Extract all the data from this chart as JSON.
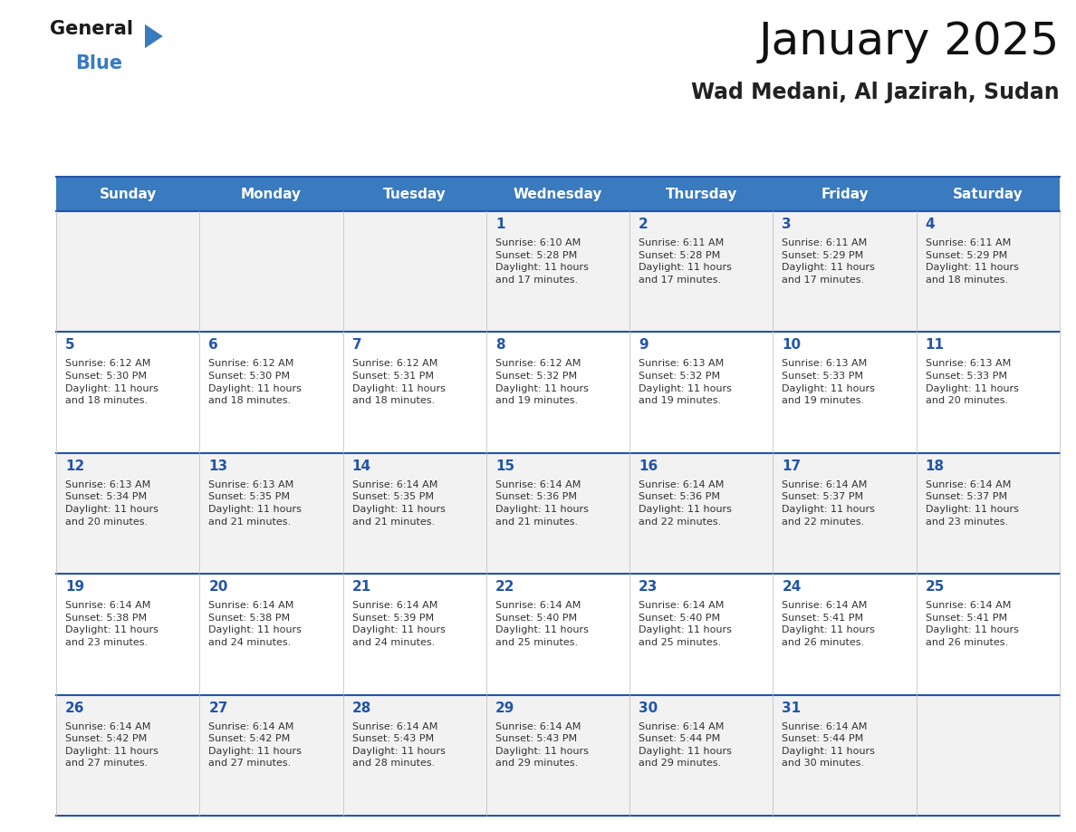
{
  "title": "January 2025",
  "subtitle": "Wad Medani, Al Jazirah, Sudan",
  "header_color": "#3a7abf",
  "header_text_color": "#ffffff",
  "cell_bg_odd": "#f2f2f2",
  "cell_bg_even": "#ffffff",
  "day_number_color": "#2255aa",
  "text_color": "#333333",
  "line_color": "#2255aa",
  "days_of_week": [
    "Sunday",
    "Monday",
    "Tuesday",
    "Wednesday",
    "Thursday",
    "Friday",
    "Saturday"
  ],
  "weeks": [
    [
      {
        "day": null,
        "info": null
      },
      {
        "day": null,
        "info": null
      },
      {
        "day": null,
        "info": null
      },
      {
        "day": 1,
        "info": "Sunrise: 6:10 AM\nSunset: 5:28 PM\nDaylight: 11 hours\nand 17 minutes."
      },
      {
        "day": 2,
        "info": "Sunrise: 6:11 AM\nSunset: 5:28 PM\nDaylight: 11 hours\nand 17 minutes."
      },
      {
        "day": 3,
        "info": "Sunrise: 6:11 AM\nSunset: 5:29 PM\nDaylight: 11 hours\nand 17 minutes."
      },
      {
        "day": 4,
        "info": "Sunrise: 6:11 AM\nSunset: 5:29 PM\nDaylight: 11 hours\nand 18 minutes."
      }
    ],
    [
      {
        "day": 5,
        "info": "Sunrise: 6:12 AM\nSunset: 5:30 PM\nDaylight: 11 hours\nand 18 minutes."
      },
      {
        "day": 6,
        "info": "Sunrise: 6:12 AM\nSunset: 5:30 PM\nDaylight: 11 hours\nand 18 minutes."
      },
      {
        "day": 7,
        "info": "Sunrise: 6:12 AM\nSunset: 5:31 PM\nDaylight: 11 hours\nand 18 minutes."
      },
      {
        "day": 8,
        "info": "Sunrise: 6:12 AM\nSunset: 5:32 PM\nDaylight: 11 hours\nand 19 minutes."
      },
      {
        "day": 9,
        "info": "Sunrise: 6:13 AM\nSunset: 5:32 PM\nDaylight: 11 hours\nand 19 minutes."
      },
      {
        "day": 10,
        "info": "Sunrise: 6:13 AM\nSunset: 5:33 PM\nDaylight: 11 hours\nand 19 minutes."
      },
      {
        "day": 11,
        "info": "Sunrise: 6:13 AM\nSunset: 5:33 PM\nDaylight: 11 hours\nand 20 minutes."
      }
    ],
    [
      {
        "day": 12,
        "info": "Sunrise: 6:13 AM\nSunset: 5:34 PM\nDaylight: 11 hours\nand 20 minutes."
      },
      {
        "day": 13,
        "info": "Sunrise: 6:13 AM\nSunset: 5:35 PM\nDaylight: 11 hours\nand 21 minutes."
      },
      {
        "day": 14,
        "info": "Sunrise: 6:14 AM\nSunset: 5:35 PM\nDaylight: 11 hours\nand 21 minutes."
      },
      {
        "day": 15,
        "info": "Sunrise: 6:14 AM\nSunset: 5:36 PM\nDaylight: 11 hours\nand 21 minutes."
      },
      {
        "day": 16,
        "info": "Sunrise: 6:14 AM\nSunset: 5:36 PM\nDaylight: 11 hours\nand 22 minutes."
      },
      {
        "day": 17,
        "info": "Sunrise: 6:14 AM\nSunset: 5:37 PM\nDaylight: 11 hours\nand 22 minutes."
      },
      {
        "day": 18,
        "info": "Sunrise: 6:14 AM\nSunset: 5:37 PM\nDaylight: 11 hours\nand 23 minutes."
      }
    ],
    [
      {
        "day": 19,
        "info": "Sunrise: 6:14 AM\nSunset: 5:38 PM\nDaylight: 11 hours\nand 23 minutes."
      },
      {
        "day": 20,
        "info": "Sunrise: 6:14 AM\nSunset: 5:38 PM\nDaylight: 11 hours\nand 24 minutes."
      },
      {
        "day": 21,
        "info": "Sunrise: 6:14 AM\nSunset: 5:39 PM\nDaylight: 11 hours\nand 24 minutes."
      },
      {
        "day": 22,
        "info": "Sunrise: 6:14 AM\nSunset: 5:40 PM\nDaylight: 11 hours\nand 25 minutes."
      },
      {
        "day": 23,
        "info": "Sunrise: 6:14 AM\nSunset: 5:40 PM\nDaylight: 11 hours\nand 25 minutes."
      },
      {
        "day": 24,
        "info": "Sunrise: 6:14 AM\nSunset: 5:41 PM\nDaylight: 11 hours\nand 26 minutes."
      },
      {
        "day": 25,
        "info": "Sunrise: 6:14 AM\nSunset: 5:41 PM\nDaylight: 11 hours\nand 26 minutes."
      }
    ],
    [
      {
        "day": 26,
        "info": "Sunrise: 6:14 AM\nSunset: 5:42 PM\nDaylight: 11 hours\nand 27 minutes."
      },
      {
        "day": 27,
        "info": "Sunrise: 6:14 AM\nSunset: 5:42 PM\nDaylight: 11 hours\nand 27 minutes."
      },
      {
        "day": 28,
        "info": "Sunrise: 6:14 AM\nSunset: 5:43 PM\nDaylight: 11 hours\nand 28 minutes."
      },
      {
        "day": 29,
        "info": "Sunrise: 6:14 AM\nSunset: 5:43 PM\nDaylight: 11 hours\nand 29 minutes."
      },
      {
        "day": 30,
        "info": "Sunrise: 6:14 AM\nSunset: 5:44 PM\nDaylight: 11 hours\nand 29 minutes."
      },
      {
        "day": 31,
        "info": "Sunrise: 6:14 AM\nSunset: 5:44 PM\nDaylight: 11 hours\nand 30 minutes."
      },
      {
        "day": null,
        "info": null
      }
    ]
  ],
  "fig_width": 11.88,
  "fig_height": 9.18,
  "dpi": 100
}
